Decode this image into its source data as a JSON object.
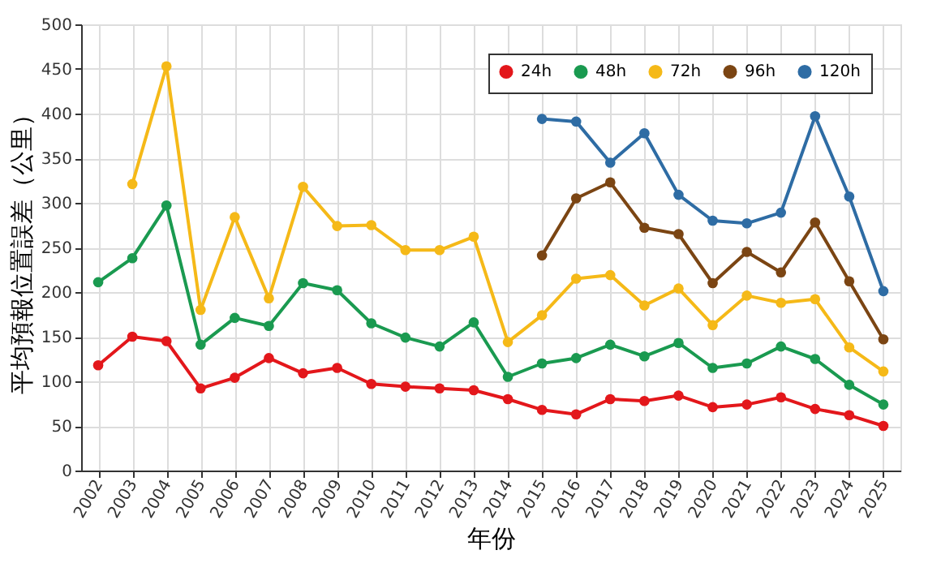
{
  "chart_data": {
    "type": "line",
    "xlabel": "年份",
    "ylabel": "平均預報位置誤差（公里）",
    "categories": [
      "2002",
      "2003",
      "2004",
      "2005",
      "2006",
      "2007",
      "2008",
      "2009",
      "2010",
      "2011",
      "2012",
      "2013",
      "2014",
      "2015",
      "2016",
      "2017",
      "2018",
      "2019",
      "2020",
      "2021",
      "2022",
      "2023",
      "2024",
      "2025"
    ],
    "series": [
      {
        "name": "24h",
        "color": "#e3171b",
        "values": [
          118,
          150,
          145,
          92,
          104,
          126,
          109,
          115,
          97,
          94,
          92,
          90,
          80,
          68,
          63,
          80,
          78,
          84,
          71,
          74,
          82,
          69,
          62,
          50
        ]
      },
      {
        "name": "48h",
        "color": "#1a9a50",
        "values": [
          211,
          238,
          297,
          141,
          171,
          162,
          210,
          202,
          165,
          149,
          139,
          166,
          105,
          120,
          126,
          141,
          128,
          143,
          115,
          120,
          139,
          125,
          96,
          74
        ]
      },
      {
        "name": "72h",
        "color": "#f5b918",
        "values": [
          null,
          321,
          453,
          180,
          284,
          193,
          318,
          274,
          275,
          247,
          247,
          262,
          144,
          174,
          215,
          219,
          185,
          204,
          163,
          196,
          188,
          192,
          138,
          111
        ]
      },
      {
        "name": "96h",
        "color": "#7b4513",
        "values": [
          null,
          null,
          null,
          null,
          null,
          null,
          null,
          null,
          null,
          null,
          null,
          null,
          null,
          241,
          305,
          323,
          272,
          265,
          210,
          245,
          222,
          278,
          212,
          147
        ]
      },
      {
        "name": "120h",
        "color": "#2e6ca4",
        "values": [
          null,
          null,
          null,
          null,
          null,
          null,
          null,
          null,
          null,
          null,
          null,
          null,
          null,
          394,
          391,
          345,
          378,
          309,
          280,
          277,
          289,
          397,
          307,
          201
        ]
      }
    ],
    "ylim": [
      0,
      500
    ],
    "yticks": [
      0,
      50,
      100,
      150,
      200,
      250,
      300,
      350,
      400,
      450,
      500
    ],
    "grid": true,
    "legend": "top right",
    "marker": "circle",
    "line_style": "solid"
  }
}
